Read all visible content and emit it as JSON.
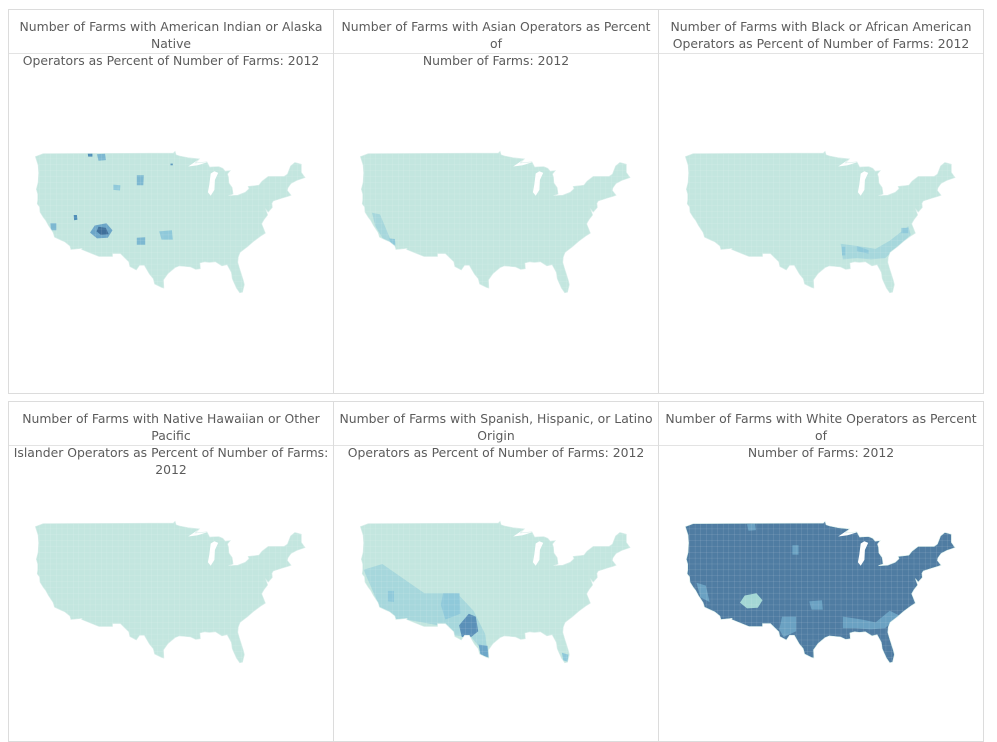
{
  "panels": [
    {
      "title_line1": "Number of Farms with American Indian or Alaska Native",
      "title_line2": "Operators as Percent of Number of Farms:  2012",
      "base_color": "#c3e6df",
      "patches": [
        [
          "#6ca6c8",
          [
            [
              -112,
              36.6
            ],
            [
              -109.5,
              37
            ],
            [
              -108.2,
              35.8
            ],
            [
              -109.2,
              34.5
            ],
            [
              -111.5,
              34.4
            ],
            [
              -113,
              35.4
            ]
          ]
        ],
        [
          "#3f6f9a",
          [
            [
              -111.2,
              36.4
            ],
            [
              -109.6,
              36.2
            ],
            [
              -109,
              35.1
            ],
            [
              -110.7,
              35
            ],
            [
              -111.6,
              35.6
            ]
          ]
        ],
        [
          "#4f8fb8",
          [
            [
              -116.5,
              38.4
            ],
            [
              -115.8,
              38.4
            ],
            [
              -115.7,
              37.6
            ],
            [
              -116.4,
              37.5
            ]
          ]
        ],
        [
          "#7db8d1",
          [
            [
              -103,
              33.3
            ],
            [
              -101.2,
              33.3
            ],
            [
              -101.2,
              34.6
            ],
            [
              -103,
              34.5
            ]
          ]
        ],
        [
          "#8fc9da",
          [
            [
              -98.2,
              35.6
            ],
            [
              -95.5,
              35.8
            ],
            [
              -95.3,
              34.2
            ],
            [
              -97.7,
              34.2
            ]
          ]
        ],
        [
          "#7db8d1",
          [
            [
              -103,
              43.5
            ],
            [
              -101.6,
              43.5
            ],
            [
              -101.5,
              45.2
            ],
            [
              -103,
              45.2
            ]
          ]
        ],
        [
          "#7db8d1",
          [
            [
              -111.5,
              48.8
            ],
            [
              -109.8,
              48.9
            ],
            [
              -109.6,
              47.8
            ],
            [
              -111.2,
              47.7
            ]
          ]
        ],
        [
          "#8fc9da",
          [
            [
              -108,
              43.6
            ],
            [
              -106.5,
              43.5
            ],
            [
              -106.6,
              42.6
            ],
            [
              -108,
              42.7
            ]
          ]
        ],
        [
          "#4f8fb8",
          [
            [
              -113.5,
              49
            ],
            [
              -112.5,
              49
            ],
            [
              -112.5,
              48.4
            ],
            [
              -113.4,
              48.4
            ]
          ]
        ],
        [
          "#7db8d1",
          [
            [
              -121.5,
              37
            ],
            [
              -120.2,
              37
            ],
            [
              -120.2,
              35.8
            ],
            [
              -121.4,
              35.8
            ]
          ]
        ],
        [
          "#4f8fb8",
          [
            [
              -95.8,
              47.2
            ],
            [
              -95.3,
              47.2
            ],
            [
              -95.3,
              46.9
            ],
            [
              -95.8,
              46.9
            ]
          ]
        ]
      ]
    },
    {
      "title_line1": "Number of Farms with Asian Operators as Percent of",
      "title_line2": "Number of Farms:  2012",
      "base_color": "#c3e6df",
      "patches": [
        [
          "#a6d7dc",
          [
            [
              -122.2,
              38.8
            ],
            [
              -120.5,
              38.5
            ],
            [
              -118.3,
              34.3
            ],
            [
              -117,
              33
            ],
            [
              -119,
              33.2
            ],
            [
              -121.5,
              36.5
            ]
          ]
        ],
        [
          "#8fc9da",
          [
            [
              -118.5,
              34.4
            ],
            [
              -117.3,
              34.3
            ],
            [
              -117.2,
              33.3
            ],
            [
              -118.3,
              33.4
            ]
          ]
        ]
      ]
    },
    {
      "title_line1": "Number of Farms with Black or African American",
      "title_line2": "Operators as Percent of Number of Farms:  2012",
      "base_color": "#c3e6df",
      "patches": [
        [
          "#a6d7dc",
          [
            [
              -91.5,
              33.5
            ],
            [
              -87,
              33
            ],
            [
              -84,
              32.6
            ],
            [
              -81,
              34
            ],
            [
              -77,
              36.5
            ],
            [
              -76.5,
              35
            ],
            [
              -79,
              33.2
            ],
            [
              -82,
              31
            ],
            [
              -85,
              30.8
            ],
            [
              -88,
              31
            ],
            [
              -91,
              30.8
            ]
          ]
        ],
        [
          "#8fc9da",
          [
            [
              -88,
              33.1
            ],
            [
              -85.5,
              32.4
            ],
            [
              -85.5,
              31.8
            ],
            [
              -88,
              32.2
            ]
          ]
        ],
        [
          "#8fc9da",
          [
            [
              -91.2,
              33
            ],
            [
              -90.5,
              33
            ],
            [
              -90.5,
              31.5
            ],
            [
              -91.2,
              31.5
            ]
          ]
        ],
        [
          "#8fc9da",
          [
            [
              -78.5,
              36.2
            ],
            [
              -77,
              36.2
            ],
            [
              -77,
              35.3
            ],
            [
              -78.5,
              35.3
            ]
          ]
        ]
      ]
    },
    {
      "title_line1": "Number of Farms with Native Hawaiian or Other Pacific",
      "title_line2": "Islander Operators as Percent of Number of Farms:  2012",
      "base_color": "#c3e6df",
      "patches": []
    },
    {
      "title_line1": "Number of Farms with Spanish, Hispanic, or Latino Origin",
      "title_line2": "Operators as Percent of Number of Farms:  2012",
      "base_color": "#c3e6df",
      "patches": [
        [
          "#a6d7dc",
          [
            [
              -124,
              41
            ],
            [
              -120,
              42
            ],
            [
              -111,
              37
            ],
            [
              -104,
              37
            ],
            [
              -100.5,
              34
            ],
            [
              -98,
              30
            ],
            [
              -97.4,
              26
            ],
            [
              -101,
              29.5
            ],
            [
              -104.5,
              29.8
            ],
            [
              -108,
              31.5
            ],
            [
              -114.8,
              32.5
            ],
            [
              -117.2,
              32.6
            ],
            [
              -120.5,
              34.5
            ]
          ]
        ],
        [
          "#8fc9da",
          [
            [
              -107,
              37
            ],
            [
              -103.5,
              37
            ],
            [
              -103.3,
              33.5
            ],
            [
              -106.5,
              32.5
            ],
            [
              -107.5,
              35
            ]
          ]
        ],
        [
          "#5a90b8",
          [
            [
              -103.6,
              31.5
            ],
            [
              -101.5,
              33.5
            ],
            [
              -100,
              33
            ],
            [
              -99.5,
              30.5
            ],
            [
              -101,
              29.5
            ],
            [
              -103,
              29.5
            ]
          ]
        ],
        [
          "#6ca6c8",
          [
            [
              -99.4,
              28.2
            ],
            [
              -97.5,
              28
            ],
            [
              -97.3,
              26
            ],
            [
              -99,
              26.5
            ]
          ]
        ],
        [
          "#8fc9da",
          [
            [
              -81.6,
              26.8
            ],
            [
              -80.2,
              26.5
            ],
            [
              -80.4,
              25.3
            ],
            [
              -81.3,
              25.5
            ]
          ]
        ],
        [
          "#8fc9da",
          [
            [
              -118.8,
              37.4
            ],
            [
              -117.5,
              37.4
            ],
            [
              -117.5,
              35.5
            ],
            [
              -118.8,
              35.6
            ]
          ]
        ]
      ]
    },
    {
      "title_line1": "Number of Farms with White Operators as Percent of",
      "title_line2": "Number of Farms:  2012",
      "base_color": "#4f7ca2",
      "patches": [
        [
          "#a3d7d4",
          [
            [
              -112,
              36.6
            ],
            [
              -109.5,
              37
            ],
            [
              -108.2,
              35.8
            ],
            [
              -109.2,
              34.5
            ],
            [
              -111.5,
              34.4
            ],
            [
              -113,
              35.4
            ]
          ]
        ],
        [
          "#6aa1c2",
          [
            [
              -104,
              33
            ],
            [
              -101,
              33
            ],
            [
              -101,
              30.5
            ],
            [
              -103.7,
              29.5
            ],
            [
              -104.6,
              30.8
            ]
          ]
        ],
        [
          "#6aa1c2",
          [
            [
              -101.8,
              45.2
            ],
            [
              -100.5,
              45.2
            ],
            [
              -100.5,
              43.6
            ],
            [
              -101.8,
              43.6
            ]
          ]
        ],
        [
          "#6aa1c2",
          [
            [
              -111.5,
              48.8
            ],
            [
              -109.8,
              48.9
            ],
            [
              -109.6,
              47.8
            ],
            [
              -111.2,
              47.7
            ]
          ]
        ],
        [
          "#6aa1c2",
          [
            [
              -91,
              33
            ],
            [
              -87,
              32.5
            ],
            [
              -84,
              32
            ],
            [
              -81,
              34
            ],
            [
              -79,
              33.2
            ],
            [
              -82,
              31
            ],
            [
              -85,
              30.8
            ],
            [
              -88.5,
              31
            ],
            [
              -91,
              31
            ]
          ]
        ],
        [
          "#6aa1c2",
          [
            [
              -98.2,
              35.6
            ],
            [
              -95.5,
              35.8
            ],
            [
              -95.3,
              34.2
            ],
            [
              -97.7,
              34.2
            ]
          ]
        ],
        [
          "#6aa1c2",
          [
            [
              -122.3,
              38.8
            ],
            [
              -120.3,
              38.3
            ],
            [
              -119.5,
              35.5
            ],
            [
              -121.5,
              36.3
            ]
          ]
        ]
      ]
    }
  ]
}
